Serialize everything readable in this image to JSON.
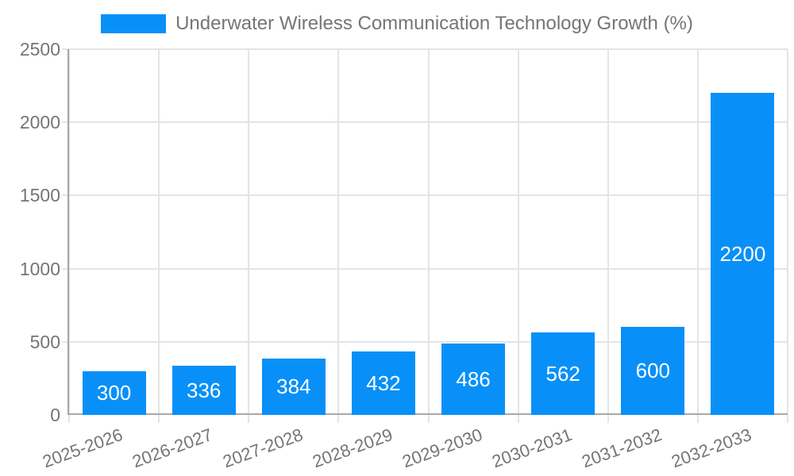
{
  "legend": {
    "label": "Underwater Wireless Communication Technology Growth (%)"
  },
  "colors": {
    "bar": "#0890f8",
    "grid": "#e4e4e4",
    "axis": "#a8a8a8",
    "text": "#757575",
    "value_label": "#ffffff",
    "background": "#ffffff"
  },
  "chart_data": {
    "type": "bar",
    "title": "Underwater Wireless Communication Technology Growth (%)",
    "categories": [
      "2025-2026",
      "2026-2027",
      "2027-2028",
      "2028-2029",
      "2029-2030",
      "2030-2031",
      "2031-2032",
      "2032-2033"
    ],
    "values": [
      300,
      336,
      384,
      432,
      486,
      562,
      600,
      2200
    ],
    "xlabel": "",
    "ylabel": "",
    "ylim": [
      0,
      2500
    ],
    "yticks": [
      0,
      500,
      1000,
      1500,
      2000,
      2500
    ],
    "grid": true,
    "legend_position": "top-center",
    "value_label_position": "inside-center",
    "bar_color": "#0890f8"
  }
}
